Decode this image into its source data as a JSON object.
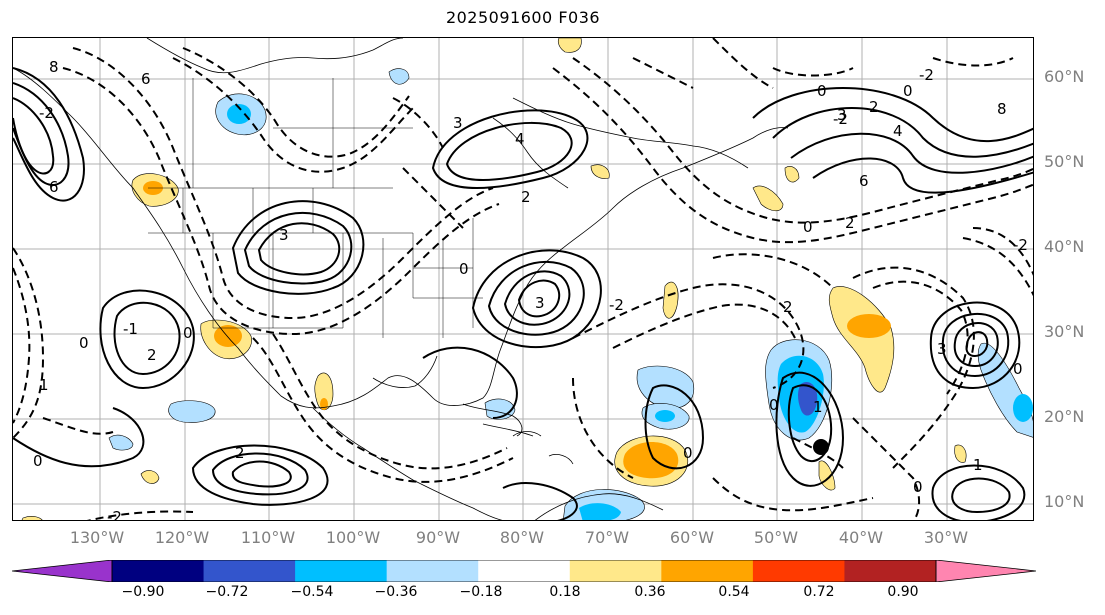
{
  "title": "2025091600 F036",
  "lat_labels": [
    "60°N",
    "50°N",
    "40°N",
    "30°N",
    "20°N",
    "10°N"
  ],
  "lon_labels": [
    "130°W",
    "120°W",
    "110°W",
    "100°W",
    "90°W",
    "80°W",
    "70°W",
    "60°W",
    "50°W",
    "40°W",
    "30°W"
  ],
  "colorbar": {
    "ticks": [
      "−0.90",
      "−0.72",
      "−0.54",
      "−0.36",
      "−0.18",
      "0.18",
      "0.36",
      "0.54",
      "0.72",
      "0.90"
    ],
    "colors": [
      "#9933cc",
      "#000080",
      "#3355cc",
      "#00bfff",
      "#b3e0ff",
      "#ffffff",
      "#ffe88a",
      "#ffa500",
      "#ff3a00",
      "#b22222",
      "#ff85b0"
    ]
  },
  "contour_labels": [
    "-2",
    "0",
    "2",
    "4",
    "6",
    "8",
    "3",
    "-1",
    "1"
  ],
  "marker": "storm-center-dot"
}
